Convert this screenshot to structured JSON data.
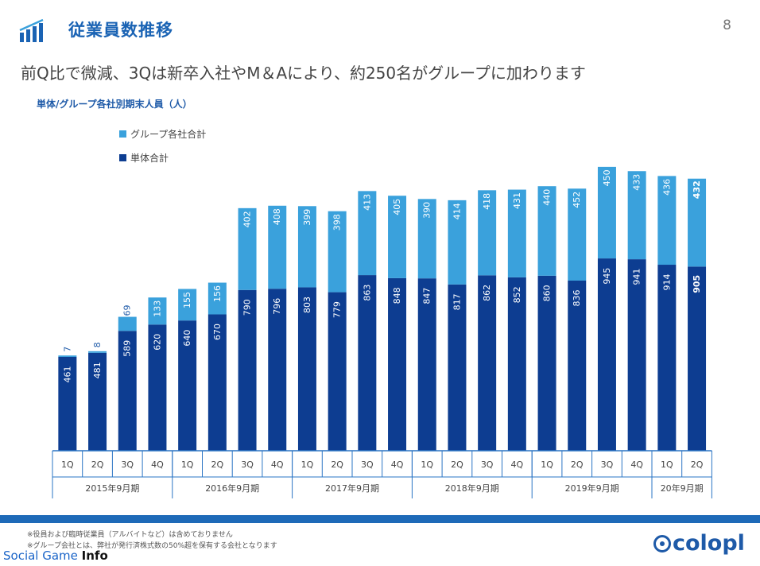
{
  "header": {
    "title": "従業員数推移",
    "page_number": "8",
    "subtitle": "前Q比で微減、3Qは新卒入社やM＆Aにより、約250名がグループに加わります"
  },
  "chart_data": {
    "type": "bar",
    "stacked": true,
    "title": "単体/グループ各社別期末人員（人）",
    "categories": [
      "1Q",
      "2Q",
      "3Q",
      "4Q",
      "1Q",
      "2Q",
      "3Q",
      "4Q",
      "1Q",
      "2Q",
      "3Q",
      "4Q",
      "1Q",
      "2Q",
      "3Q",
      "4Q",
      "1Q",
      "2Q",
      "3Q",
      "4Q",
      "1Q",
      "2Q"
    ],
    "groups": [
      {
        "label": "2015年9月期",
        "count": 4
      },
      {
        "label": "2016年9月期",
        "count": 4
      },
      {
        "label": "2017年9月期",
        "count": 4
      },
      {
        "label": "2018年9月期",
        "count": 4
      },
      {
        "label": "2019年9月期",
        "count": 4
      },
      {
        "label": "20年9月期",
        "count": 2
      }
    ],
    "series": [
      {
        "name": "単体合計",
        "color": "#0d3d91",
        "values": [
          461,
          481,
          589,
          620,
          640,
          670,
          790,
          796,
          803,
          779,
          863,
          848,
          847,
          817,
          862,
          852,
          860,
          836,
          945,
          941,
          914,
          905
        ]
      },
      {
        "name": "グループ各社合計",
        "color": "#3aa1dc",
        "values": [
          7,
          8,
          69,
          133,
          155,
          156,
          402,
          408,
          399,
          398,
          413,
          405,
          390,
          414,
          418,
          431,
          440,
          452,
          450,
          433,
          436,
          432
        ]
      }
    ],
    "legend_order": [
      "グループ各社合計",
      "単体合計"
    ],
    "legend_position": "top-left",
    "ylim": [
      0,
      1450
    ],
    "grid": false,
    "bold_last": true
  },
  "footer": {
    "notes": [
      "※役員および臨時従業員（アルバイトなど）は含めておりません",
      "※グループ会社とは、弊社が発行済株式数の50%超を保有する会社となります"
    ],
    "brand_text": "Social Game ",
    "brand_bold": "Info",
    "company_logo": "colopl"
  }
}
